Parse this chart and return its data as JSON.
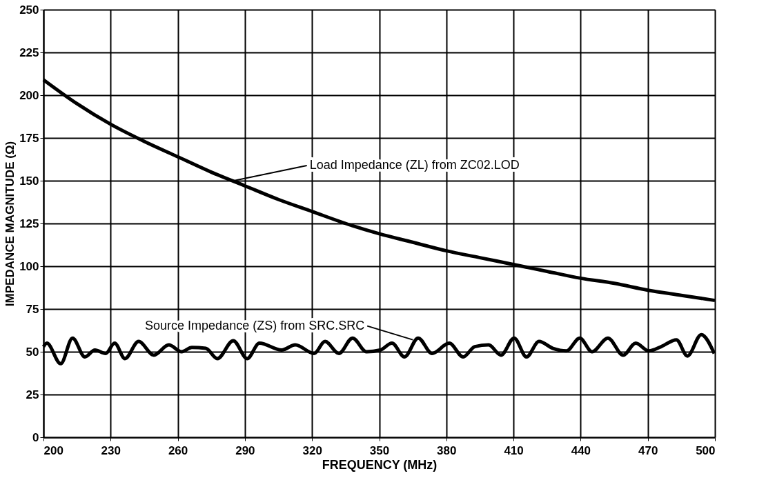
{
  "chart_data": {
    "type": "line",
    "xlabel": "FREQUENCY (MHz)",
    "ylabel": "IMPEDANCE MAGNITUDE (Ω)",
    "xlim": [
      200,
      500
    ],
    "xticks": [
      200,
      230,
      260,
      290,
      320,
      350,
      380,
      410,
      440,
      470,
      500
    ],
    "ylim": [
      0,
      250
    ],
    "yticks": [
      0,
      25,
      50,
      75,
      100,
      125,
      150,
      175,
      200,
      225,
      250
    ],
    "grid": true,
    "marker": "none",
    "line_style": "solid",
    "series": [
      {
        "color": "#000000",
        "x": [
          200,
          215,
          230,
          245,
          260,
          275,
          290,
          305,
          320,
          335,
          350,
          365,
          380,
          395,
          410,
          425,
          440,
          455,
          470,
          485,
          500
        ],
        "values": [
          209,
          195,
          183,
          173,
          164,
          155,
          147,
          139,
          132,
          125,
          119,
          114,
          109,
          105,
          101,
          97,
          93,
          90,
          86,
          83,
          80
        ]
      },
      {
        "color": "#000000",
        "x": [
          200,
          201.5,
          207.7,
          213,
          218.5,
          223,
          227.8,
          231.8,
          236.4,
          242.5,
          249.3,
          256,
          261.7,
          266.3,
          272.5,
          277.7,
          284.8,
          291,
          296.5,
          306.4,
          312.5,
          320.9,
          325.8,
          332,
          338.1,
          344.3,
          350.5,
          355.7,
          361.3,
          367.4,
          373.6,
          381.3,
          387.5,
          392.7,
          398.9,
          404.4,
          410.3,
          415.8,
          421.4,
          427.6,
          433.7,
          439.6,
          445.1,
          452.2,
          459,
          464.6,
          470.4,
          476,
          482.8,
          487.7,
          493.9,
          499.7
        ],
        "values": [
          53,
          55,
          43,
          58,
          47,
          51,
          49,
          55,
          46,
          56,
          48,
          54,
          50,
          52.5,
          52,
          46,
          56.5,
          46,
          55,
          51,
          54,
          49,
          56,
          49,
          58,
          50,
          51,
          55,
          47,
          58,
          49,
          55,
          47,
          53,
          54,
          48,
          58,
          47,
          56,
          52,
          50.5,
          58,
          50,
          58,
          48,
          55,
          50.5,
          53,
          57,
          47.5,
          60,
          49
        ]
      }
    ],
    "annotations": [
      {
        "text": "Load Impedance (ZL) from ZC02.LOD",
        "x": 285,
        "y": 150
      },
      {
        "text": "Source Impedance (ZS) from SRC.SRC",
        "x": 365,
        "y": 57
      }
    ]
  }
}
